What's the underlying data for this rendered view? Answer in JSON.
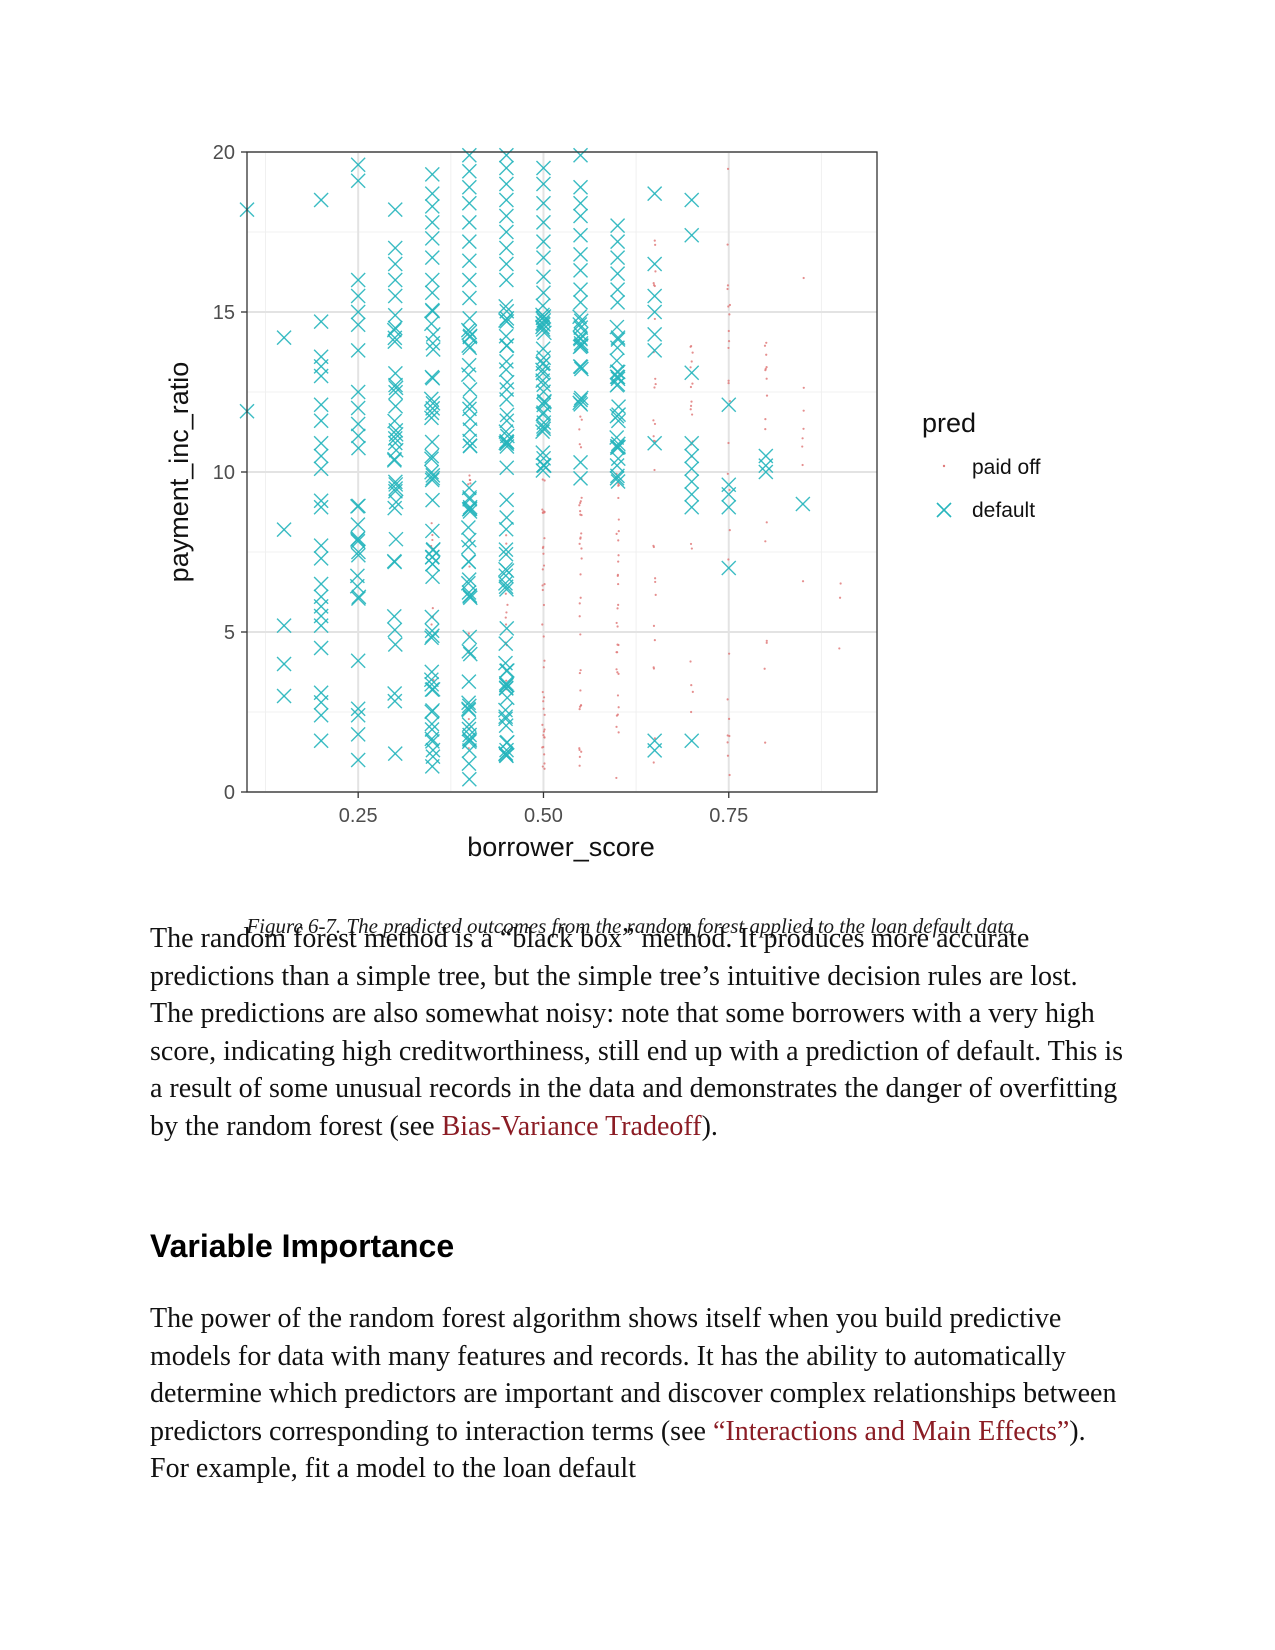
{
  "chart_data": {
    "type": "scatter",
    "xlabel": "borrower_score",
    "ylabel": "payment_inc_ratio",
    "xlim": [
      0.1,
      0.95
    ],
    "ylim": [
      0,
      20
    ],
    "x_ticks": [
      {
        "value": 0.25,
        "label": "0.25"
      },
      {
        "value": 0.5,
        "label": "0.50"
      },
      {
        "value": 0.75,
        "label": "0.75"
      }
    ],
    "y_ticks": [
      {
        "value": 0,
        "label": "0"
      },
      {
        "value": 5,
        "label": "5"
      },
      {
        "value": 10,
        "label": "10"
      },
      {
        "value": 15,
        "label": "15"
      },
      {
        "value": 20,
        "label": "20"
      }
    ],
    "grid": true,
    "legend": {
      "title": "pred",
      "placement": "right",
      "entries": [
        {
          "label": "paid off",
          "marker": "dot",
          "color": "#e07b7b"
        },
        {
          "label": "default",
          "marker": "x",
          "color": "#26b5bd"
        }
      ]
    },
    "series": [
      {
        "name": "paid off",
        "color": "#e07b7b",
        "marker": "dot",
        "columns": [
          {
            "x": 0.35,
            "y": [
              3.5,
              9.5
            ],
            "density": 10
          },
          {
            "x": 0.4,
            "y": [
              0.8,
              10.5
            ],
            "density": 16
          },
          {
            "x": 0.45,
            "y": [
              0.6,
              8.5
            ],
            "density": 14
          },
          {
            "x": 0.5,
            "y": [
              0.7,
              9.8
            ],
            "density": 40
          },
          {
            "x": 0.55,
            "y": [
              0.4,
              11.8
            ],
            "density": 36
          },
          {
            "x": 0.6,
            "y": [
              0.4,
              10.0
            ],
            "density": 32
          },
          {
            "x": 0.65,
            "y": [
              0.9,
              18.0
            ],
            "density": 28
          },
          {
            "x": 0.7,
            "y": [
              1.5,
              14.5
            ],
            "density": 20
          },
          {
            "x": 0.75,
            "y": [
              0.5,
              19.6
            ],
            "density": 26
          },
          {
            "x": 0.8,
            "y": [
              0.9,
              16.0
            ],
            "density": 16
          },
          {
            "x": 0.85,
            "y": [
              3.6,
              18.0
            ],
            "density": 8
          },
          {
            "x": 0.9,
            "y": [
              3.0,
              8.0
            ],
            "density": 3
          }
        ]
      },
      {
        "name": "default",
        "color": "#26b5bd",
        "marker": "x",
        "columns": [
          {
            "x": 0.1,
            "points": [
              18.2,
              11.9
            ]
          },
          {
            "x": 0.15,
            "points": [
              14.2,
              8.2,
              5.2,
              4.0,
              3.0
            ]
          },
          {
            "x": 0.2,
            "points": [
              18.5,
              14.7,
              13.6,
              13.3,
              13.0,
              12.1,
              11.6,
              10.9,
              10.5,
              10.1,
              9.1,
              8.9,
              7.7,
              7.3,
              6.5,
              6.1,
              5.8,
              5.5,
              5.2,
              4.5,
              3.1,
              2.8,
              2.4,
              1.6
            ]
          },
          {
            "x": 0.25,
            "points": [
              19.6,
              19.1,
              16.0,
              15.5,
              15.0,
              14.6,
              13.8,
              12.5,
              12.0,
              11.5,
              4.1,
              2.6,
              2.4,
              1.8,
              1.0
            ],
            "band": [
              5.5,
              11.5
            ],
            "density": 14
          },
          {
            "x": 0.3,
            "points": [
              18.2,
              17.0,
              16.5,
              16.0,
              15.5,
              14.9,
              14.5,
              1.2
            ],
            "band": [
              1.5,
              14.5
            ],
            "density": 30
          },
          {
            "x": 0.35,
            "points": [
              19.3,
              18.7,
              18.3,
              17.8,
              17.3,
              16.7,
              16.0,
              15.6,
              0.8
            ],
            "band": [
              0.9,
              15.3
            ],
            "density": 46
          },
          {
            "x": 0.4,
            "points": [
              19.9,
              19.4,
              18.9,
              18.4,
              17.8,
              17.2,
              16.6,
              16.0,
              0.4
            ],
            "band": [
              0.8,
              15.5
            ],
            "density": 52
          },
          {
            "x": 0.45,
            "points": [
              19.9,
              19.5,
              19.0,
              18.5,
              18.0,
              17.5,
              17.0,
              16.5,
              16.0
            ],
            "band": [
              1.1,
              15.6
            ],
            "density": 56
          },
          {
            "x": 0.5,
            "points": [
              19.5,
              19.0,
              18.4,
              17.8,
              17.2,
              16.7,
              16.1,
              15.6
            ],
            "band": [
              10.0,
              15.3
            ],
            "density": 34
          },
          {
            "x": 0.55,
            "points": [
              19.9,
              18.9,
              18.4,
              18.0,
              17.4,
              16.8,
              16.3,
              15.7,
              15.3,
              10.3,
              9.8
            ],
            "band": [
              11.9,
              15.0
            ],
            "density": 18
          },
          {
            "x": 0.6,
            "points": [
              17.7,
              17.2,
              16.7,
              16.2,
              15.7,
              15.3
            ],
            "band": [
              9.7,
              14.8
            ],
            "density": 26
          },
          {
            "x": 0.65,
            "points": [
              18.7,
              16.5,
              15.5,
              15.0,
              14.3,
              13.8,
              10.9,
              1.6,
              1.3
            ]
          },
          {
            "x": 0.7,
            "points": [
              18.5,
              17.4,
              13.1,
              10.9,
              10.5,
              10.1,
              9.7,
              9.3,
              8.9,
              1.6
            ]
          },
          {
            "x": 0.75,
            "points": [
              12.1,
              9.6,
              9.3,
              8.9,
              7.0
            ]
          },
          {
            "x": 0.8,
            "points": [
              10.5,
              10.2,
              10.0
            ]
          },
          {
            "x": 0.85,
            "points": [
              9.0
            ]
          }
        ]
      }
    ]
  },
  "caption": "Figure 6-7. The predicted outcomes from the random forest applied to the loan default data",
  "paragraph1": {
    "text": "The random forest method is a “black box” method. It produces more accurate predictions than a simple tree, but the simple tree’s intuitive decision rules are lost. The predictions are also somewhat noisy: note that some borrowers with a very high score, indicating high creditworthiness, still end up with a prediction of default. This is a result of some unusual records in the data and demonstrates the danger of overfitting by the random forest (see ",
    "link": "Bias-Variance Tradeoff",
    "after": ")."
  },
  "heading": "Variable Importance",
  "paragraph2": {
    "text": "The power of the random forest algorithm shows itself when you build predictive models for data with many features and records. It has the ability to automatically determine which predictors are important and discover complex relationships between predictors corresponding to interaction terms (see ",
    "link": "“Interactions and Main Effects”",
    "after": "). For example, fit a model to the loan default"
  }
}
